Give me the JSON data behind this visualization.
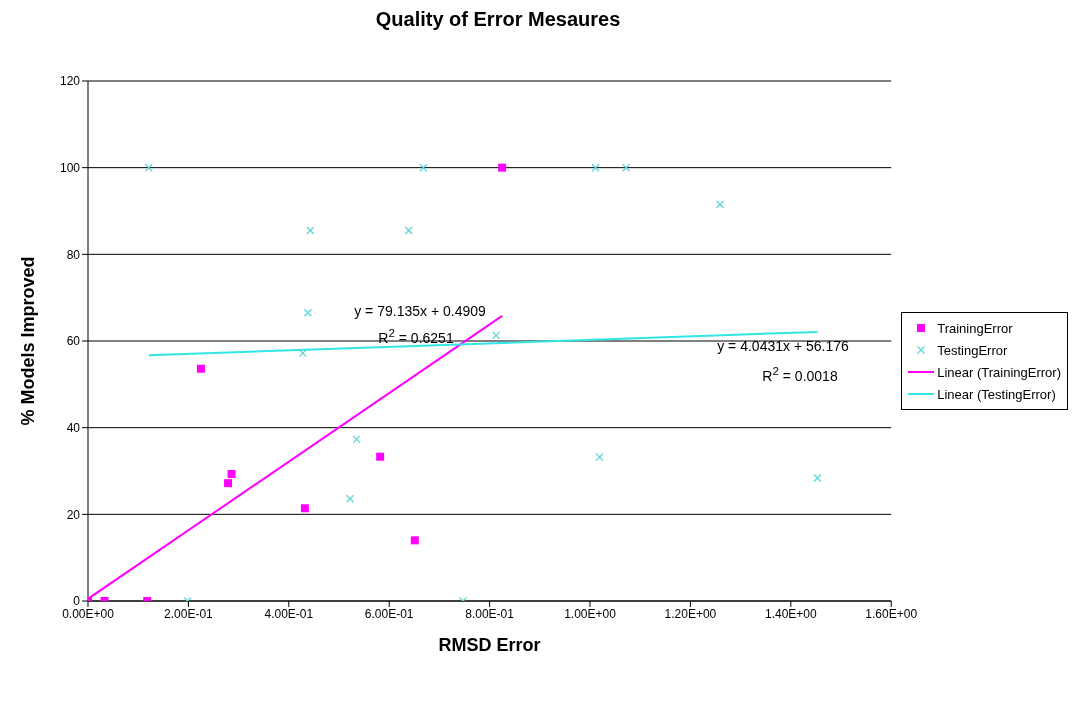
{
  "chart_data": {
    "type": "scatter",
    "title": "Quality of Error Mesaures",
    "xlabel": "RMSD Error",
    "ylabel": "% Models Improved",
    "xlim": [
      0,
      1.6
    ],
    "xticks": [
      {
        "value": 0,
        "label": "0.00E+00"
      },
      {
        "value": 0.2,
        "label": "2.00E-01"
      },
      {
        "value": 0.4,
        "label": "4.00E-01"
      },
      {
        "value": 0.6,
        "label": "6.00E-01"
      },
      {
        "value": 0.8,
        "label": "8.00E-01"
      },
      {
        "value": 1,
        "label": "1.00E+00"
      },
      {
        "value": 1.2,
        "label": "1.20E+00"
      },
      {
        "value": 1.4,
        "label": "1.40E+00"
      },
      {
        "value": 1.6,
        "label": "1.60E+00"
      }
    ],
    "ylim": [
      0,
      120
    ],
    "yticks": [
      0,
      20,
      40,
      60,
      80,
      100,
      120
    ],
    "grid": "y",
    "legend": "right",
    "series": [
      {
        "name": "TrainingError",
        "type": "scatter",
        "marker": "square",
        "color": "#ff00ff",
        "x": [
          0,
          0.033,
          0.118,
          0.225,
          0.279,
          0.286,
          0.432,
          0.582,
          0.651,
          0.825
        ],
        "values": [
          0,
          0,
          0,
          53.6,
          27.2,
          29.3,
          21.4,
          33.3,
          14.0,
          100
        ]
      },
      {
        "name": "TestingError",
        "type": "scatter",
        "marker": "cross",
        "color": "#5cd6d6",
        "x": [
          0.121,
          0.198,
          0.428,
          0.438,
          0.443,
          0.522,
          0.535,
          0.639,
          0.668,
          0.747,
          0.813,
          1.011,
          1.019,
          1.072,
          1.259,
          1.453
        ],
        "values": [
          100,
          0,
          57.2,
          66.5,
          85.5,
          23.6,
          37.3,
          85.5,
          100,
          0,
          61.3,
          100,
          33.2,
          100,
          91.5,
          28.4
        ]
      },
      {
        "name": "Linear (TrainingError)",
        "type": "line",
        "marker": "none",
        "color": "#ff00ff",
        "x": [
          0,
          0.825
        ],
        "values": [
          0.5,
          65.8
        ]
      },
      {
        "name": "Linear (TestingError)",
        "type": "line",
        "marker": "none",
        "color": "#33e6e6",
        "x": [
          0.121,
          1.453
        ],
        "values": [
          56.7,
          62.1
        ]
      }
    ],
    "annotations": [
      "y = 79.135x + 0.4909",
      "R$^{2}$ = 0.6251",
      "y = 4.0431x + 56.176",
      "R$^{2}$ = 0.0018"
    ]
  }
}
